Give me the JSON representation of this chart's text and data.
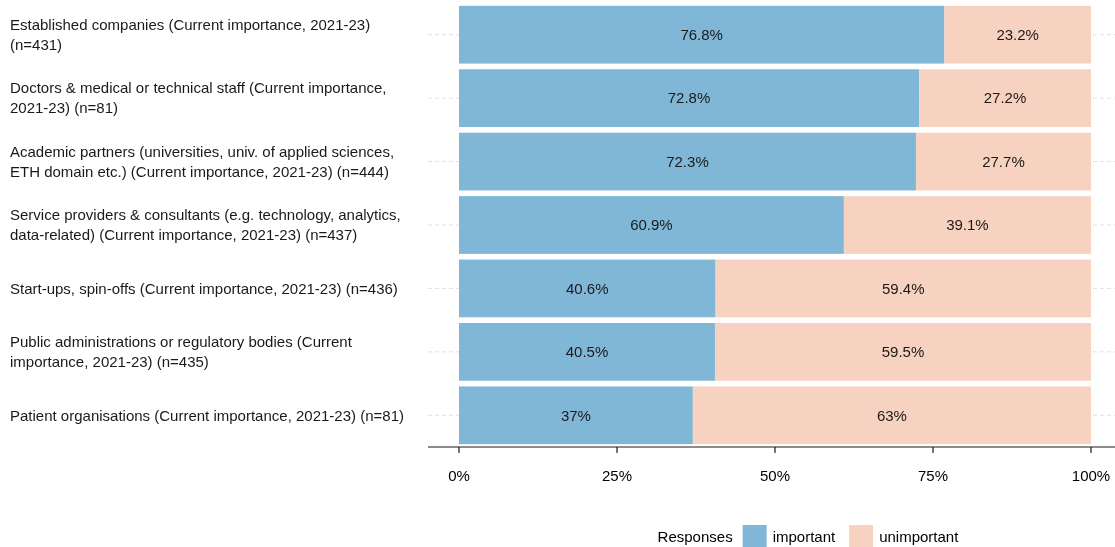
{
  "chart_data": {
    "type": "bar",
    "orientation": "horizontal",
    "stacked": true,
    "categories": [
      "Established companies (Current importance, 2021-23) (n=431)",
      "Doctors & medical or technical staff (Current importance, 2021-23) (n=81)",
      "Academic partners (universities, univ. of applied sciences, ETH domain etc.) (Current importance, 2021-23) (n=444)",
      "Service providers & consultants (e.g. technology, analytics, data-related) (Current importance, 2021-23) (n=437)",
      "Start-ups, spin-offs (Current importance, 2021-23) (n=436)",
      "Public administrations or regulatory bodies (Current importance, 2021-23) (n=435)",
      "Patient organisations (Current importance, 2021-23) (n=81)"
    ],
    "series": [
      {
        "name": "important",
        "color": "#80b7d7",
        "values": [
          76.8,
          72.8,
          72.3,
          60.9,
          40.6,
          40.5,
          37
        ],
        "value_labels": [
          "76.8%",
          "72.8%",
          "72.3%",
          "60.9%",
          "40.6%",
          "40.5%",
          "37%"
        ]
      },
      {
        "name": "unimportant",
        "color": "#f8d2c0",
        "values": [
          23.2,
          27.2,
          27.7,
          39.1,
          59.4,
          59.5,
          63
        ],
        "value_labels": [
          "23.2%",
          "27.2%",
          "27.7%",
          "39.1%",
          "59.4%",
          "59.5%",
          "63%"
        ]
      }
    ],
    "xlim": [
      0,
      100
    ],
    "xticks": [
      {
        "value": 0,
        "label": "0%"
      },
      {
        "value": 25,
        "label": "25%"
      },
      {
        "value": 50,
        "label": "50%"
      },
      {
        "value": 75,
        "label": "75%"
      },
      {
        "value": 100,
        "label": "100%"
      }
    ],
    "grid": "y",
    "legend": "bottom",
    "legend_title": "Responses"
  }
}
